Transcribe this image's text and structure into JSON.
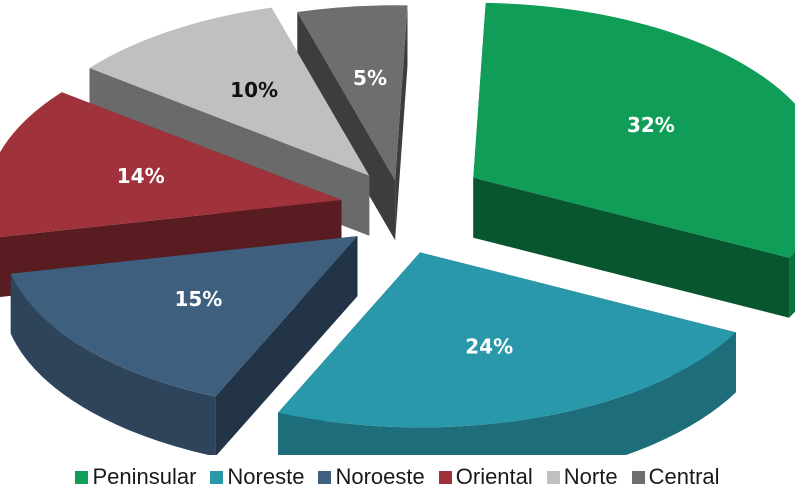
{
  "chart_data": {
    "type": "pie",
    "style": "3d-exploded",
    "title": "",
    "legend_position": "bottom",
    "categories": [
      "Peninsular",
      "Noreste",
      "Noroeste",
      "Oriental",
      "Norte",
      "Central"
    ],
    "values": [
      32,
      24,
      15,
      14,
      10,
      5
    ],
    "value_labels": [
      "32%",
      "24%",
      "15%",
      "14%",
      "10%",
      "5%"
    ],
    "colors": [
      "#0f9d58",
      "#2898aa",
      "#3f5f7f",
      "#a0323c",
      "#c0c0c0",
      "#6e6e6e"
    ]
  }
}
